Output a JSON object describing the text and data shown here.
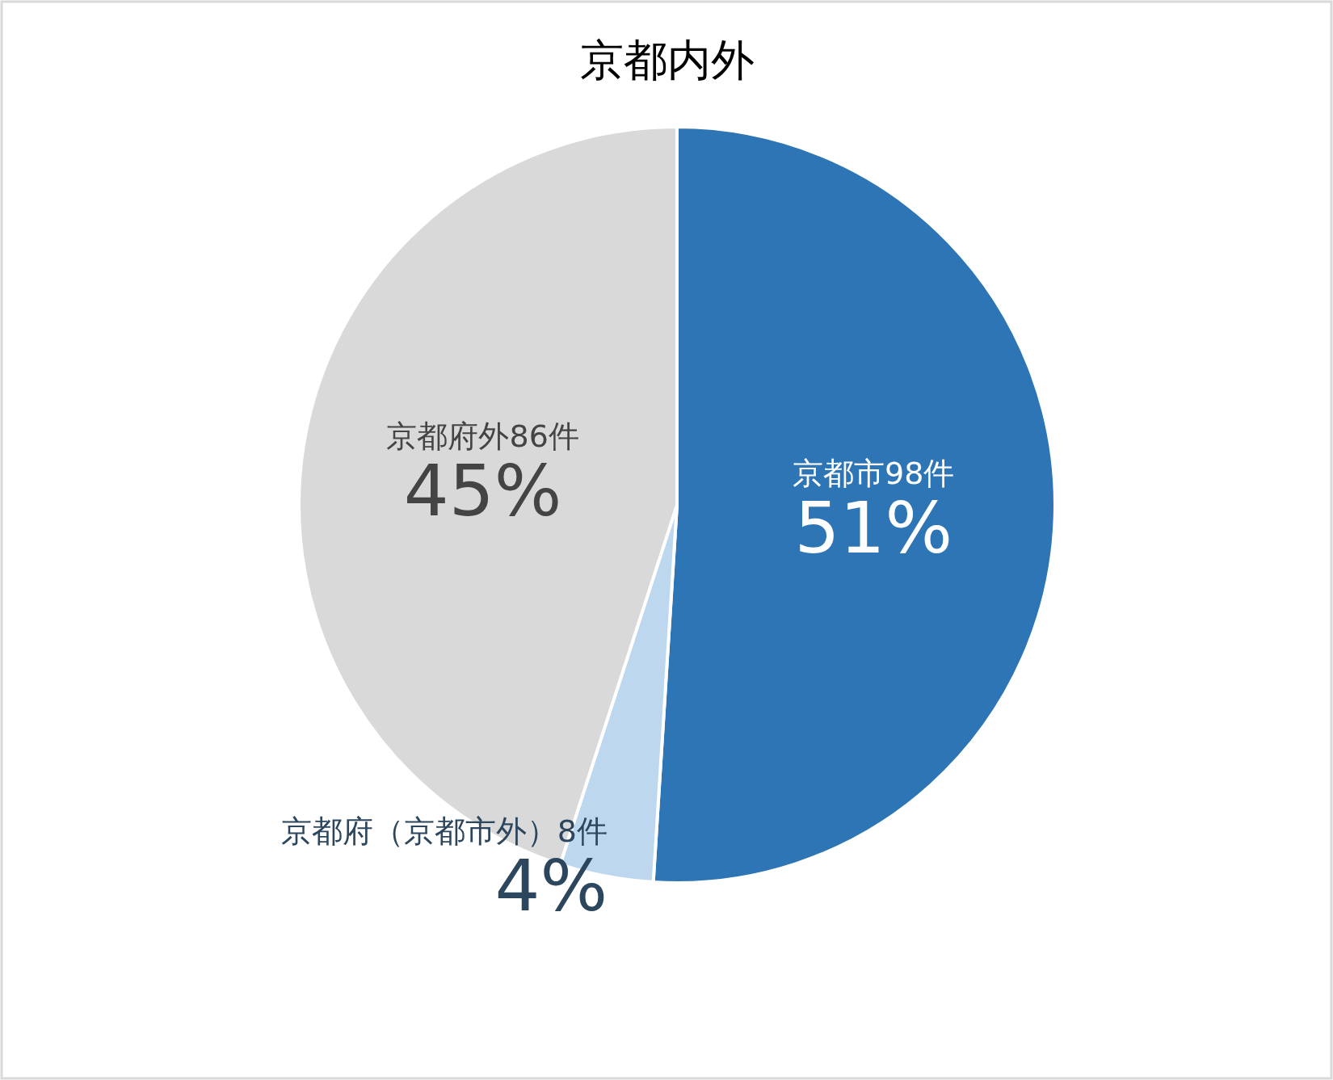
{
  "chart_data": {
    "type": "pie",
    "title": "京都内外",
    "categories": [
      "京都市98件",
      "京都府（京都市外）8件",
      "京都府外86件"
    ],
    "values": [
      51,
      4,
      45
    ],
    "colors": [
      "#2e75b6",
      "#bdd7ee",
      "#d9d9d9"
    ],
    "value_labels": [
      "51%",
      "4%",
      "45%"
    ]
  }
}
